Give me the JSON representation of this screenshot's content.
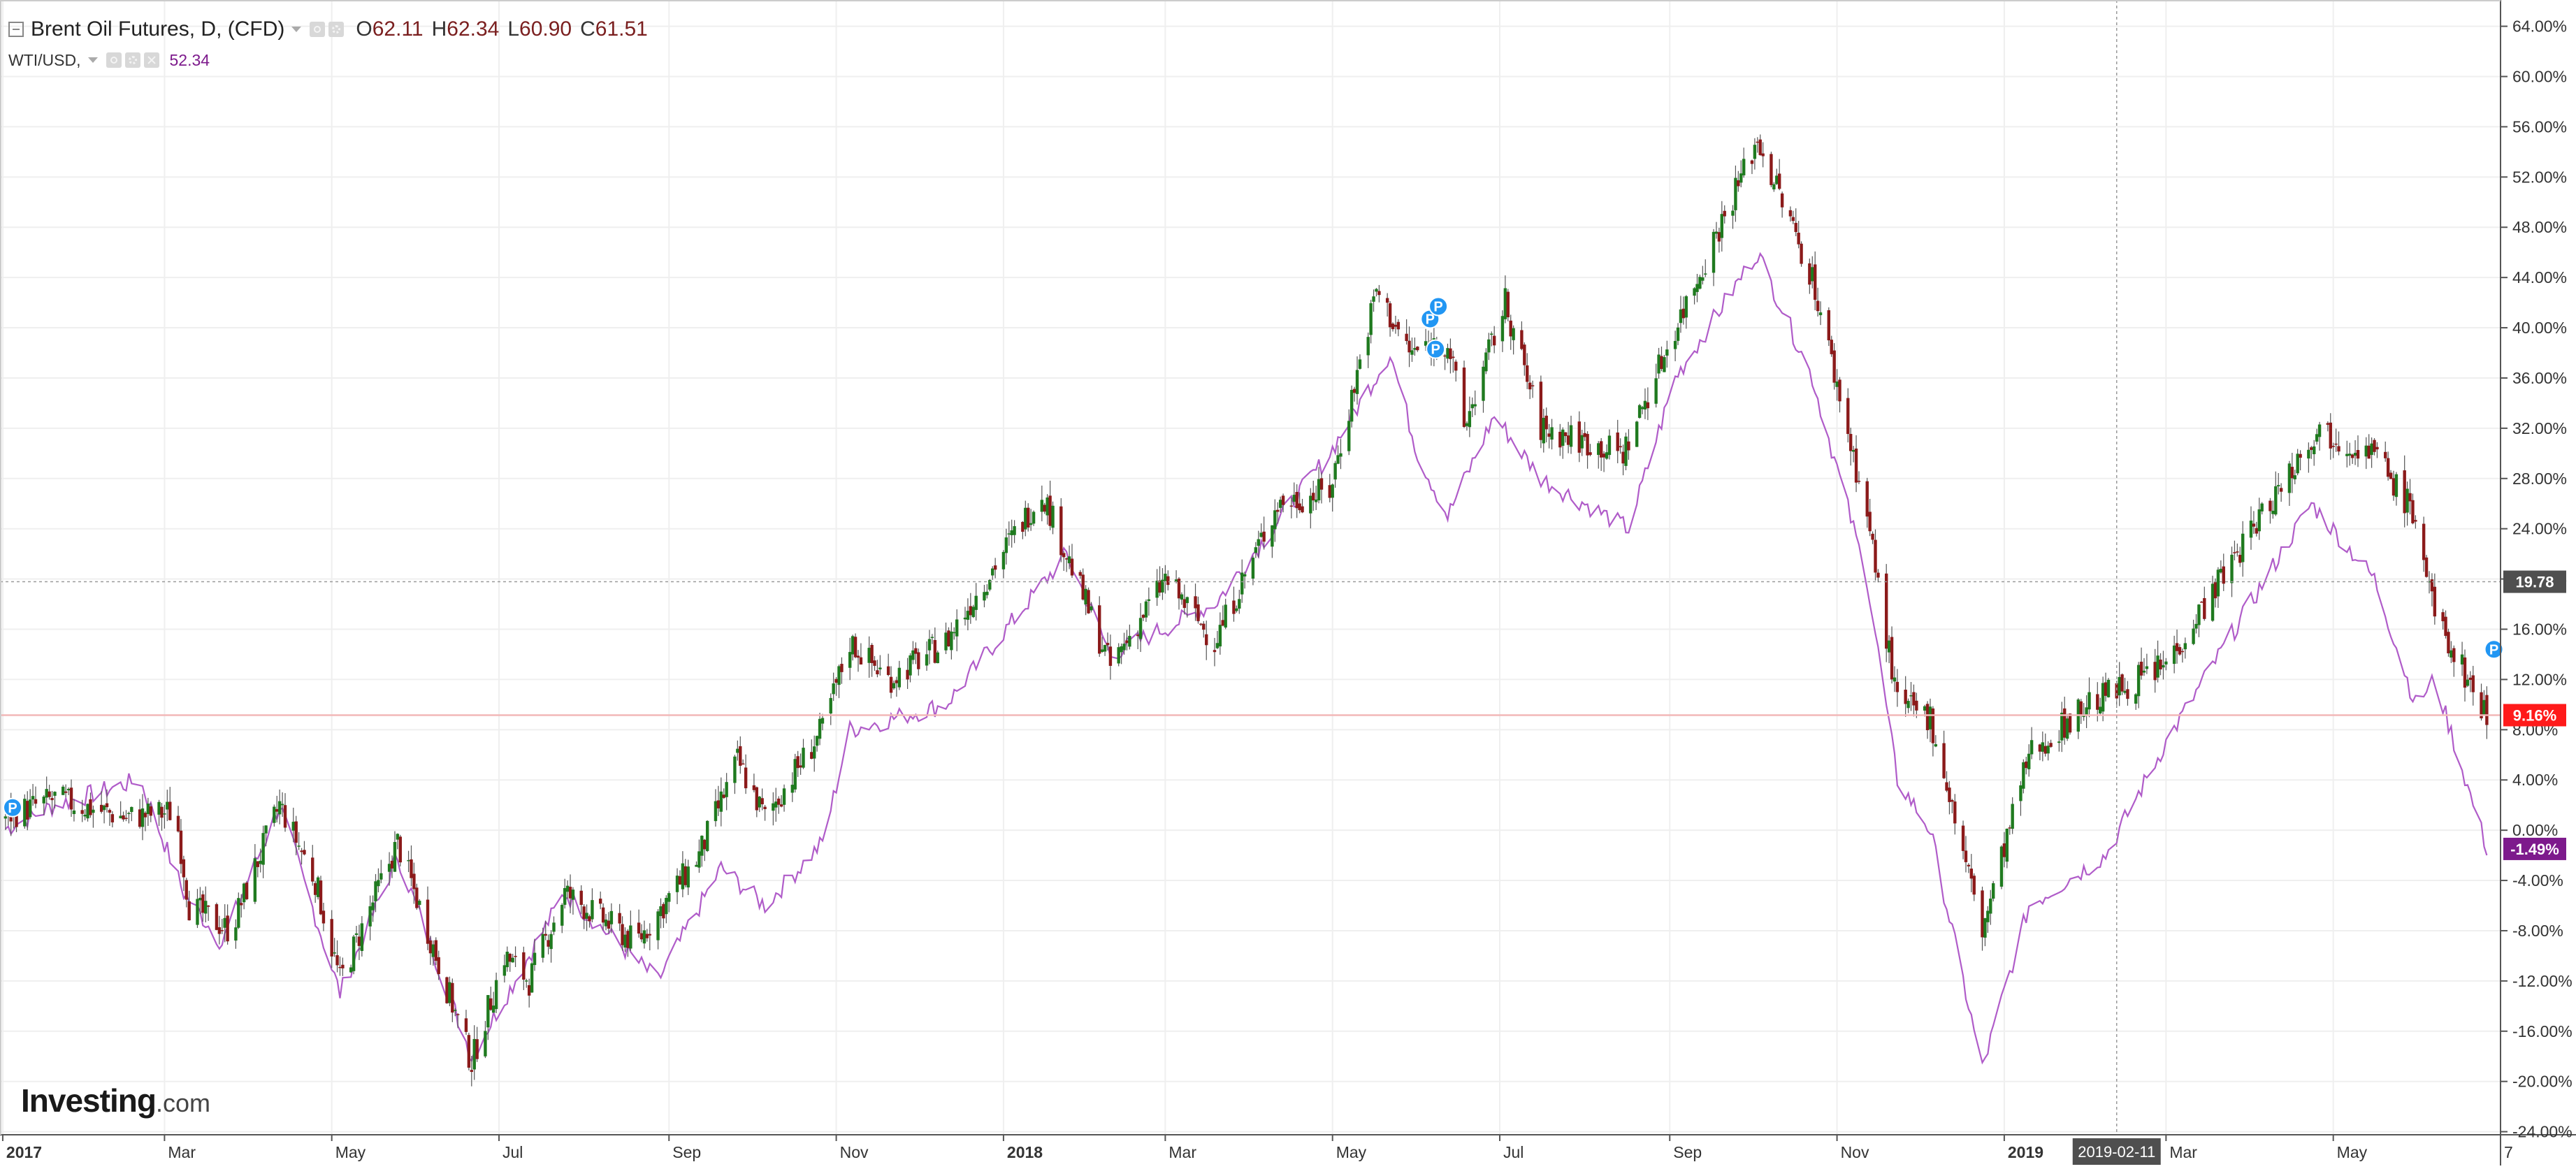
{
  "legend": {
    "main_title": "Brent Oil Futures, D, (CFD)",
    "open_label": "O",
    "open_value": "62.11",
    "high_label": "H",
    "high_value": "62.34",
    "low_label": "L",
    "low_value": "60.90",
    "close_label": "C",
    "close_value": "61.51",
    "overlay_title": "WTI/USD,",
    "overlay_value": "52.34"
  },
  "logo": {
    "brand": "Investing",
    "suffix": ".com"
  },
  "chart_data": {
    "type": "line",
    "title": "Brent Oil Futures, D, (CFD)",
    "ylabel": "",
    "xlabel": "",
    "ylim": [
      -24,
      64
    ],
    "y_unit": "%",
    "y_ticks": [
      "64.00%",
      "60.00%",
      "56.00%",
      "52.00%",
      "48.00%",
      "44.00%",
      "40.00%",
      "36.00%",
      "32.00%",
      "28.00%",
      "24.00%",
      "20.00%",
      "16.00%",
      "12.00%",
      "8.00%",
      "4.00%",
      "0.00%",
      "-4.00%",
      "-8.00%",
      "-12.00%",
      "-16.00%",
      "-20.00%",
      "-24.00%"
    ],
    "x_tick_labels": [
      {
        "label": "2017",
        "date": "2017-01-01",
        "bold": true
      },
      {
        "label": "Mar",
        "date": "2017-03-01",
        "bold": false
      },
      {
        "label": "May",
        "date": "2017-05-01",
        "bold": false
      },
      {
        "label": "Jul",
        "date": "2017-07-01",
        "bold": false
      },
      {
        "label": "Sep",
        "date": "2017-09-01",
        "bold": false
      },
      {
        "label": "Nov",
        "date": "2017-11-01",
        "bold": false
      },
      {
        "label": "2018",
        "date": "2018-01-01",
        "bold": true
      },
      {
        "label": "Mar",
        "date": "2018-03-01",
        "bold": false
      },
      {
        "label": "May",
        "date": "2018-05-01",
        "bold": false
      },
      {
        "label": "Jul",
        "date": "2018-07-01",
        "bold": false
      },
      {
        "label": "Sep",
        "date": "2018-09-01",
        "bold": false
      },
      {
        "label": "Nov",
        "date": "2018-11-01",
        "bold": false
      },
      {
        "label": "2019",
        "date": "2019-01-01",
        "bold": true
      },
      {
        "label": "Mar",
        "date": "2019-03-01",
        "bold": false
      },
      {
        "label": "May",
        "date": "2019-05-01",
        "bold": false
      },
      {
        "label": "7",
        "date": "2019-07-01",
        "bold": false
      }
    ],
    "x_range": [
      "2016-12-31",
      "2019-07-01"
    ],
    "grid": true,
    "crosshair": {
      "date": "2019-02-11",
      "date_label": "2019-02-11",
      "value": 19.78,
      "value_label": "19.78"
    },
    "reference_line": {
      "value": 9.16
    },
    "markers": [
      {
        "label": "P",
        "date": "2016-12-31",
        "value": 1.8
      },
      {
        "label": "P",
        "date": "2018-06-01",
        "value": 40.7
      },
      {
        "label": "P",
        "date": "2018-06-04",
        "value": 41.7
      },
      {
        "label": "P",
        "date": "2018-06-03",
        "value": 38.3
      },
      {
        "label": "P",
        "date": "2019-06-24",
        "value": 14.4
      }
    ],
    "series": [
      {
        "name": "Brent Oil Futures, D, (CFD)",
        "style": "candlestick",
        "color_up": "#1f7a1f",
        "color_down": "#8b1a1a",
        "last_value": 9.16,
        "last_label": "9.16%",
        "label_color": "#ff1a1a",
        "anchors": [
          {
            "date": "2017-01-01",
            "value": 1.0
          },
          {
            "date": "2017-01-20",
            "value": 2.5
          },
          {
            "date": "2017-02-15",
            "value": 1.0
          },
          {
            "date": "2017-03-05",
            "value": 1.5
          },
          {
            "date": "2017-03-10",
            "value": -6.0
          },
          {
            "date": "2017-03-25",
            "value": -8.0
          },
          {
            "date": "2017-04-12",
            "value": 2.0
          },
          {
            "date": "2017-04-25",
            "value": -4.0
          },
          {
            "date": "2017-05-04",
            "value": -12.0
          },
          {
            "date": "2017-05-25",
            "value": -1.0
          },
          {
            "date": "2017-06-05",
            "value": -8.0
          },
          {
            "date": "2017-06-21",
            "value": -18.5
          },
          {
            "date": "2017-07-03",
            "value": -10.0
          },
          {
            "date": "2017-07-12",
            "value": -12.0
          },
          {
            "date": "2017-07-25",
            "value": -5.0
          },
          {
            "date": "2017-08-20",
            "value": -9.0
          },
          {
            "date": "2017-09-12",
            "value": -2.0
          },
          {
            "date": "2017-09-26",
            "value": 5.5
          },
          {
            "date": "2017-10-06",
            "value": 1.0
          },
          {
            "date": "2017-10-27",
            "value": 8.0
          },
          {
            "date": "2017-11-06",
            "value": 15.0
          },
          {
            "date": "2017-11-20",
            "value": 12.0
          },
          {
            "date": "2017-12-11",
            "value": 15.0
          },
          {
            "date": "2018-01-15",
            "value": 27.0
          },
          {
            "date": "2018-02-09",
            "value": 13.0
          },
          {
            "date": "2018-03-01",
            "value": 20.0
          },
          {
            "date": "2018-03-19",
            "value": 15.0
          },
          {
            "date": "2018-04-11",
            "value": 26.0
          },
          {
            "date": "2018-04-30",
            "value": 27.0
          },
          {
            "date": "2018-05-17",
            "value": 43.0
          },
          {
            "date": "2018-05-29",
            "value": 38.0
          },
          {
            "date": "2018-06-12",
            "value": 39.0
          },
          {
            "date": "2018-06-18",
            "value": 32.0
          },
          {
            "date": "2018-07-03",
            "value": 42.0
          },
          {
            "date": "2018-07-16",
            "value": 32.0
          },
          {
            "date": "2018-08-15",
            "value": 30.0
          },
          {
            "date": "2018-09-03",
            "value": 40.0
          },
          {
            "date": "2018-10-03",
            "value": 55.0
          },
          {
            "date": "2018-10-23",
            "value": 44.0
          },
          {
            "date": "2018-11-12",
            "value": 25.0
          },
          {
            "date": "2018-11-23",
            "value": 10.0
          },
          {
            "date": "2018-12-05",
            "value": 9.0
          },
          {
            "date": "2018-12-24",
            "value": -8.0
          },
          {
            "date": "2019-01-10",
            "value": 6.0
          },
          {
            "date": "2019-01-31",
            "value": 10.0
          },
          {
            "date": "2019-02-28",
            "value": 13.0
          },
          {
            "date": "2019-03-18",
            "value": 19.0
          },
          {
            "date": "2019-04-25",
            "value": 32.0
          },
          {
            "date": "2019-05-16",
            "value": 30.0
          },
          {
            "date": "2019-05-31",
            "value": 25.0
          },
          {
            "date": "2019-06-07",
            "value": 17.0
          },
          {
            "date": "2019-06-26",
            "value": 9.16
          }
        ]
      },
      {
        "name": "WTI/USD",
        "style": "line",
        "color": "#b05cc9",
        "last_value": -1.49,
        "last_label": "-1.49%",
        "label_color": "#7d1a8c",
        "anchors": [
          {
            "date": "2017-01-01",
            "value": 0.0
          },
          {
            "date": "2017-01-20",
            "value": 2.0
          },
          {
            "date": "2017-02-20",
            "value": 4.0
          },
          {
            "date": "2017-03-08",
            "value": -5.0
          },
          {
            "date": "2017-03-22",
            "value": -9.0
          },
          {
            "date": "2017-04-12",
            "value": 2.0
          },
          {
            "date": "2017-05-04",
            "value": -13.0
          },
          {
            "date": "2017-05-25",
            "value": -2.0
          },
          {
            "date": "2017-06-21",
            "value": -18.0
          },
          {
            "date": "2017-07-25",
            "value": -5.0
          },
          {
            "date": "2017-08-28",
            "value": -12.0
          },
          {
            "date": "2017-09-20",
            "value": -3.0
          },
          {
            "date": "2017-10-06",
            "value": -6.0
          },
          {
            "date": "2017-10-27",
            "value": -1.0
          },
          {
            "date": "2017-11-06",
            "value": 8.0
          },
          {
            "date": "2017-12-11",
            "value": 10.0
          },
          {
            "date": "2018-01-24",
            "value": 22.0
          },
          {
            "date": "2018-02-09",
            "value": 14.0
          },
          {
            "date": "2018-03-19",
            "value": 18.0
          },
          {
            "date": "2018-04-30",
            "value": 30.0
          },
          {
            "date": "2018-05-22",
            "value": 38.0
          },
          {
            "date": "2018-06-01",
            "value": 30.0
          },
          {
            "date": "2018-06-12",
            "value": 25.0
          },
          {
            "date": "2018-06-29",
            "value": 33.0
          },
          {
            "date": "2018-07-16",
            "value": 28.0
          },
          {
            "date": "2018-08-17",
            "value": 24.0
          },
          {
            "date": "2018-09-03",
            "value": 36.0
          },
          {
            "date": "2018-10-03",
            "value": 46.0
          },
          {
            "date": "2018-10-23",
            "value": 36.0
          },
          {
            "date": "2018-11-12",
            "value": 20.0
          },
          {
            "date": "2018-11-23",
            "value": 4.0
          },
          {
            "date": "2018-12-05",
            "value": 0.0
          },
          {
            "date": "2018-12-24",
            "value": -19.0
          },
          {
            "date": "2019-01-10",
            "value": -6.0
          },
          {
            "date": "2019-02-07",
            "value": -2.0
          },
          {
            "date": "2019-03-01",
            "value": 7.0
          },
          {
            "date": "2019-04-23",
            "value": 26.0
          },
          {
            "date": "2019-05-16",
            "value": 20.0
          },
          {
            "date": "2019-05-31",
            "value": 10.0
          },
          {
            "date": "2019-06-07",
            "value": 12.0
          },
          {
            "date": "2019-06-26",
            "value": -1.49
          }
        ]
      }
    ]
  }
}
